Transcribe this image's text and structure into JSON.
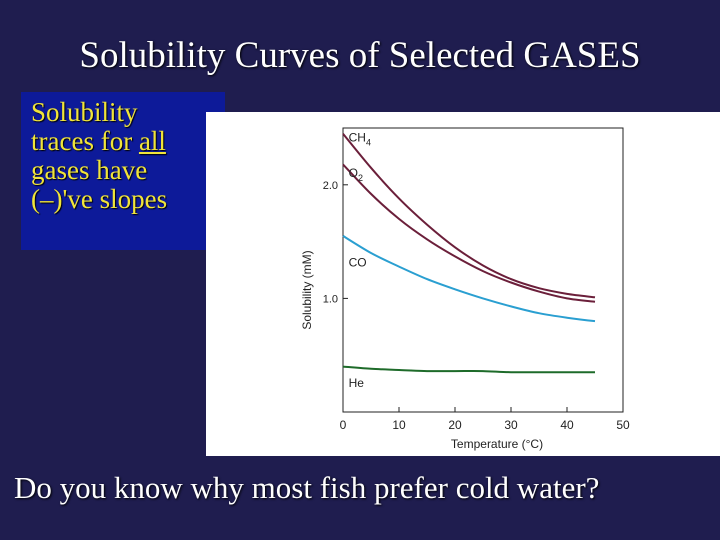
{
  "slide": {
    "title": "Solubility Curves of Selected GASES",
    "callout": {
      "line1": "Solubility",
      "line2_pre": "traces for ",
      "line2_ul": "all",
      "line3": "gases have",
      "line4": "(–)'ve slopes"
    },
    "question": "Do you know why most fish prefer cold water?"
  },
  "chart_data": {
    "type": "line",
    "xlabel": "Temperature (°C)",
    "ylabel": "Solubility (mM)",
    "xlim": [
      0,
      50
    ],
    "ylim": [
      0,
      2.5
    ],
    "xticks": [
      {
        "v": 0,
        "label": "0"
      },
      {
        "v": 10,
        "label": "10"
      },
      {
        "v": 20,
        "label": "20"
      },
      {
        "v": 30,
        "label": "30"
      },
      {
        "v": 40,
        "label": "40"
      },
      {
        "v": 50,
        "label": "50"
      }
    ],
    "yticks": [
      {
        "v": 1.0,
        "label": "1.0"
      },
      {
        "v": 2.0,
        "label": "2.0"
      }
    ],
    "grid": false,
    "series": [
      {
        "name": "CH₄",
        "color": "#6b1f3a",
        "x": [
          0,
          5,
          10,
          15,
          20,
          25,
          30,
          35,
          40,
          45
        ],
        "y": [
          2.45,
          2.15,
          1.88,
          1.65,
          1.45,
          1.29,
          1.17,
          1.09,
          1.04,
          1.01
        ]
      },
      {
        "name": "O₂",
        "color": "#6b1f3a",
        "x": [
          0,
          5,
          10,
          15,
          20,
          25,
          30,
          35,
          40,
          45
        ],
        "y": [
          2.18,
          1.92,
          1.7,
          1.52,
          1.37,
          1.24,
          1.14,
          1.06,
          1.0,
          0.97
        ]
      },
      {
        "name": "CO",
        "color": "#2a9fd1",
        "x": [
          0,
          5,
          10,
          15,
          20,
          25,
          30,
          35,
          40,
          45
        ],
        "y": [
          1.55,
          1.4,
          1.28,
          1.17,
          1.08,
          1.0,
          0.93,
          0.87,
          0.83,
          0.8
        ]
      },
      {
        "name": "He",
        "color": "#1e6b2a",
        "x": [
          0,
          5,
          10,
          15,
          20,
          25,
          30,
          35,
          40,
          45
        ],
        "y": [
          0.4,
          0.38,
          0.37,
          0.36,
          0.36,
          0.36,
          0.35,
          0.35,
          0.35,
          0.35
        ]
      }
    ],
    "series_labels": [
      {
        "text": "CH",
        "sub": "4",
        "x": 1,
        "y": 2.38
      },
      {
        "text": "O",
        "sub": "2",
        "x": 1,
        "y": 2.07
      },
      {
        "text": "CO",
        "sub": "",
        "x": 1,
        "y": 1.28
      },
      {
        "text": "He",
        "sub": "",
        "x": 1,
        "y": 0.22
      }
    ]
  }
}
